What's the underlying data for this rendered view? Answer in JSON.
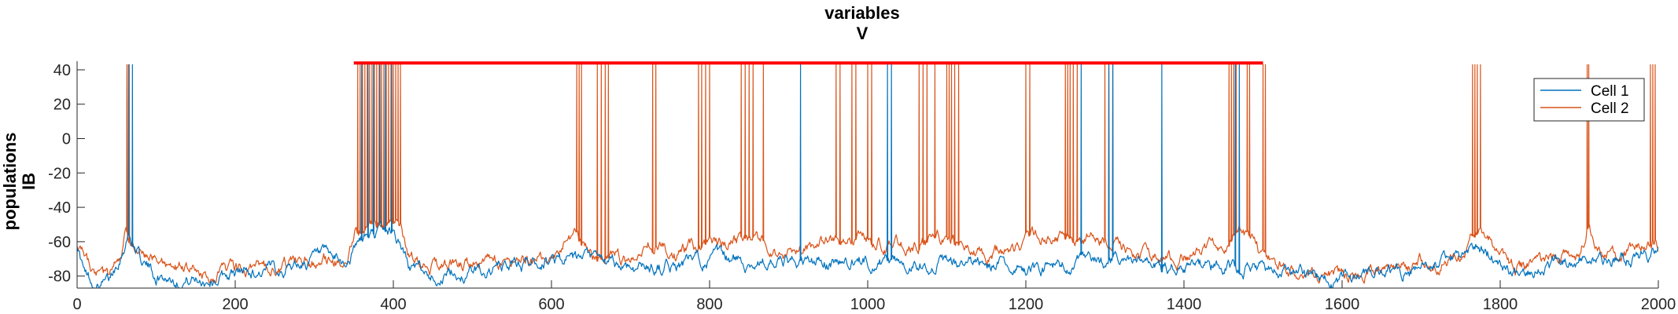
{
  "chart_data": {
    "type": "line",
    "title": [
      "variables",
      "V"
    ],
    "ylabel": [
      "populations",
      "IB"
    ],
    "xlabel": "",
    "xlim": [
      0,
      2000
    ],
    "ylim": [
      -87,
      45
    ],
    "xticks": [
      0,
      200,
      400,
      600,
      800,
      1000,
      1200,
      1400,
      1600,
      1800,
      2000
    ],
    "yticks": [
      -80,
      -60,
      -40,
      -20,
      0,
      20,
      40
    ],
    "grid": false,
    "legend_placement": "top-right",
    "colors": {
      "cell1": "#0072BD",
      "cell2": "#D95319",
      "stim_bar": "#FF0000",
      "axis": "#262626"
    },
    "stim_bar": {
      "x": [
        350,
        1500
      ],
      "y": 44
    },
    "series": [
      {
        "name": "Cell 1",
        "color": "#0072BD",
        "baseline": [
          [
            0,
            -60
          ],
          [
            10,
            -80
          ],
          [
            25,
            -85
          ],
          [
            40,
            -84
          ],
          [
            50,
            -72
          ],
          [
            60,
            -60
          ],
          [
            65,
            -55
          ],
          [
            70,
            -60
          ],
          [
            80,
            -70
          ],
          [
            100,
            -80
          ],
          [
            150,
            -82
          ],
          [
            200,
            -79
          ],
          [
            250,
            -76
          ],
          [
            300,
            -70
          ],
          [
            340,
            -73
          ],
          [
            355,
            -62
          ],
          [
            365,
            -57
          ],
          [
            380,
            -55
          ],
          [
            400,
            -54
          ],
          [
            410,
            -62
          ],
          [
            420,
            -75
          ],
          [
            450,
            -80
          ],
          [
            500,
            -78
          ],
          [
            550,
            -74
          ],
          [
            600,
            -70
          ],
          [
            650,
            -72
          ],
          [
            700,
            -75
          ],
          [
            750,
            -74
          ],
          [
            800,
            -70
          ],
          [
            850,
            -72
          ],
          [
            900,
            -73
          ],
          [
            950,
            -72
          ],
          [
            1000,
            -71
          ],
          [
            1050,
            -72
          ],
          [
            1100,
            -73
          ],
          [
            1150,
            -74
          ],
          [
            1200,
            -75
          ],
          [
            1250,
            -74
          ],
          [
            1300,
            -72
          ],
          [
            1350,
            -73
          ],
          [
            1400,
            -75
          ],
          [
            1450,
            -74
          ],
          [
            1500,
            -76
          ],
          [
            1550,
            -80
          ],
          [
            1600,
            -82
          ],
          [
            1650,
            -79
          ],
          [
            1700,
            -75
          ],
          [
            1750,
            -70
          ],
          [
            1770,
            -64
          ],
          [
            1790,
            -68
          ],
          [
            1820,
            -77
          ],
          [
            1850,
            -73
          ],
          [
            1900,
            -70
          ],
          [
            1950,
            -71
          ],
          [
            1990,
            -67
          ],
          [
            2000,
            -65
          ]
        ],
        "spikes": [
          65,
          70,
          360,
          368,
          375,
          383,
          390,
          398,
          915,
          1025,
          1030,
          1270,
          1305,
          1310,
          1372,
          1465,
          1470
        ]
      },
      {
        "name": "Cell 2",
        "color": "#D95319",
        "baseline": [
          [
            0,
            -62
          ],
          [
            20,
            -80
          ],
          [
            40,
            -82
          ],
          [
            55,
            -70
          ],
          [
            62,
            -55
          ],
          [
            70,
            -60
          ],
          [
            90,
            -72
          ],
          [
            120,
            -76
          ],
          [
            160,
            -78
          ],
          [
            200,
            -77
          ],
          [
            250,
            -74
          ],
          [
            300,
            -70
          ],
          [
            340,
            -72
          ],
          [
            352,
            -52
          ],
          [
            370,
            -52
          ],
          [
            390,
            -53
          ],
          [
            410,
            -53
          ],
          [
            420,
            -70
          ],
          [
            450,
            -74
          ],
          [
            500,
            -73
          ],
          [
            550,
            -72
          ],
          [
            600,
            -70
          ],
          [
            630,
            -55
          ],
          [
            650,
            -68
          ],
          [
            700,
            -70
          ],
          [
            730,
            -58
          ],
          [
            760,
            -68
          ],
          [
            800,
            -60
          ],
          [
            850,
            -58
          ],
          [
            900,
            -66
          ],
          [
            950,
            -60
          ],
          [
            1000,
            -58
          ],
          [
            1050,
            -62
          ],
          [
            1100,
            -58
          ],
          [
            1150,
            -68
          ],
          [
            1200,
            -60
          ],
          [
            1250,
            -56
          ],
          [
            1300,
            -60
          ],
          [
            1350,
            -68
          ],
          [
            1400,
            -70
          ],
          [
            1450,
            -60
          ],
          [
            1470,
            -52
          ],
          [
            1490,
            -62
          ],
          [
            1500,
            -68
          ],
          [
            1550,
            -80
          ],
          [
            1600,
            -81
          ],
          [
            1650,
            -76
          ],
          [
            1700,
            -72
          ],
          [
            1750,
            -68
          ],
          [
            1770,
            -52
          ],
          [
            1790,
            -62
          ],
          [
            1820,
            -76
          ],
          [
            1850,
            -72
          ],
          [
            1900,
            -68
          ],
          [
            1910,
            -52
          ],
          [
            1930,
            -66
          ],
          [
            1950,
            -68
          ],
          [
            1990,
            -60
          ],
          [
            2000,
            -62
          ]
        ],
        "spikes": [
          63,
          66,
          355,
          358,
          361,
          364,
          367,
          370,
          373,
          376,
          379,
          382,
          385,
          388,
          391,
          394,
          397,
          400,
          403,
          406,
          409,
          632,
          635,
          638,
          658,
          663,
          668,
          672,
          728,
          732,
          786,
          790,
          795,
          800,
          840,
          845,
          850,
          855,
          868,
          960,
          965,
          980,
          985,
          1000,
          1005,
          1065,
          1070,
          1075,
          1085,
          1100,
          1103,
          1106,
          1110,
          1115,
          1200,
          1205,
          1250,
          1253,
          1256,
          1260,
          1265,
          1300,
          1305,
          1310,
          1457,
          1460,
          1463,
          1466,
          1480,
          1483,
          1500,
          1503,
          1765,
          1768,
          1771,
          1775,
          1910,
          1912,
          1990,
          1993,
          1996
        ]
      }
    ]
  }
}
